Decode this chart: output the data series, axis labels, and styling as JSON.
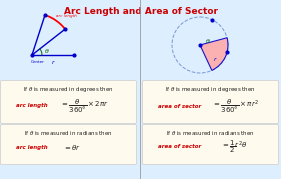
{
  "title": "Arc Length and Area of Sector",
  "title_color": "#cc0000",
  "bg_color": "#ddeeff",
  "panel_bg": "#fffaee",
  "divider_color": "#999999",
  "text_color": "#222222",
  "red_color": "#cc0000",
  "blue_color": "#0000cc",
  "green_color": "#006600"
}
